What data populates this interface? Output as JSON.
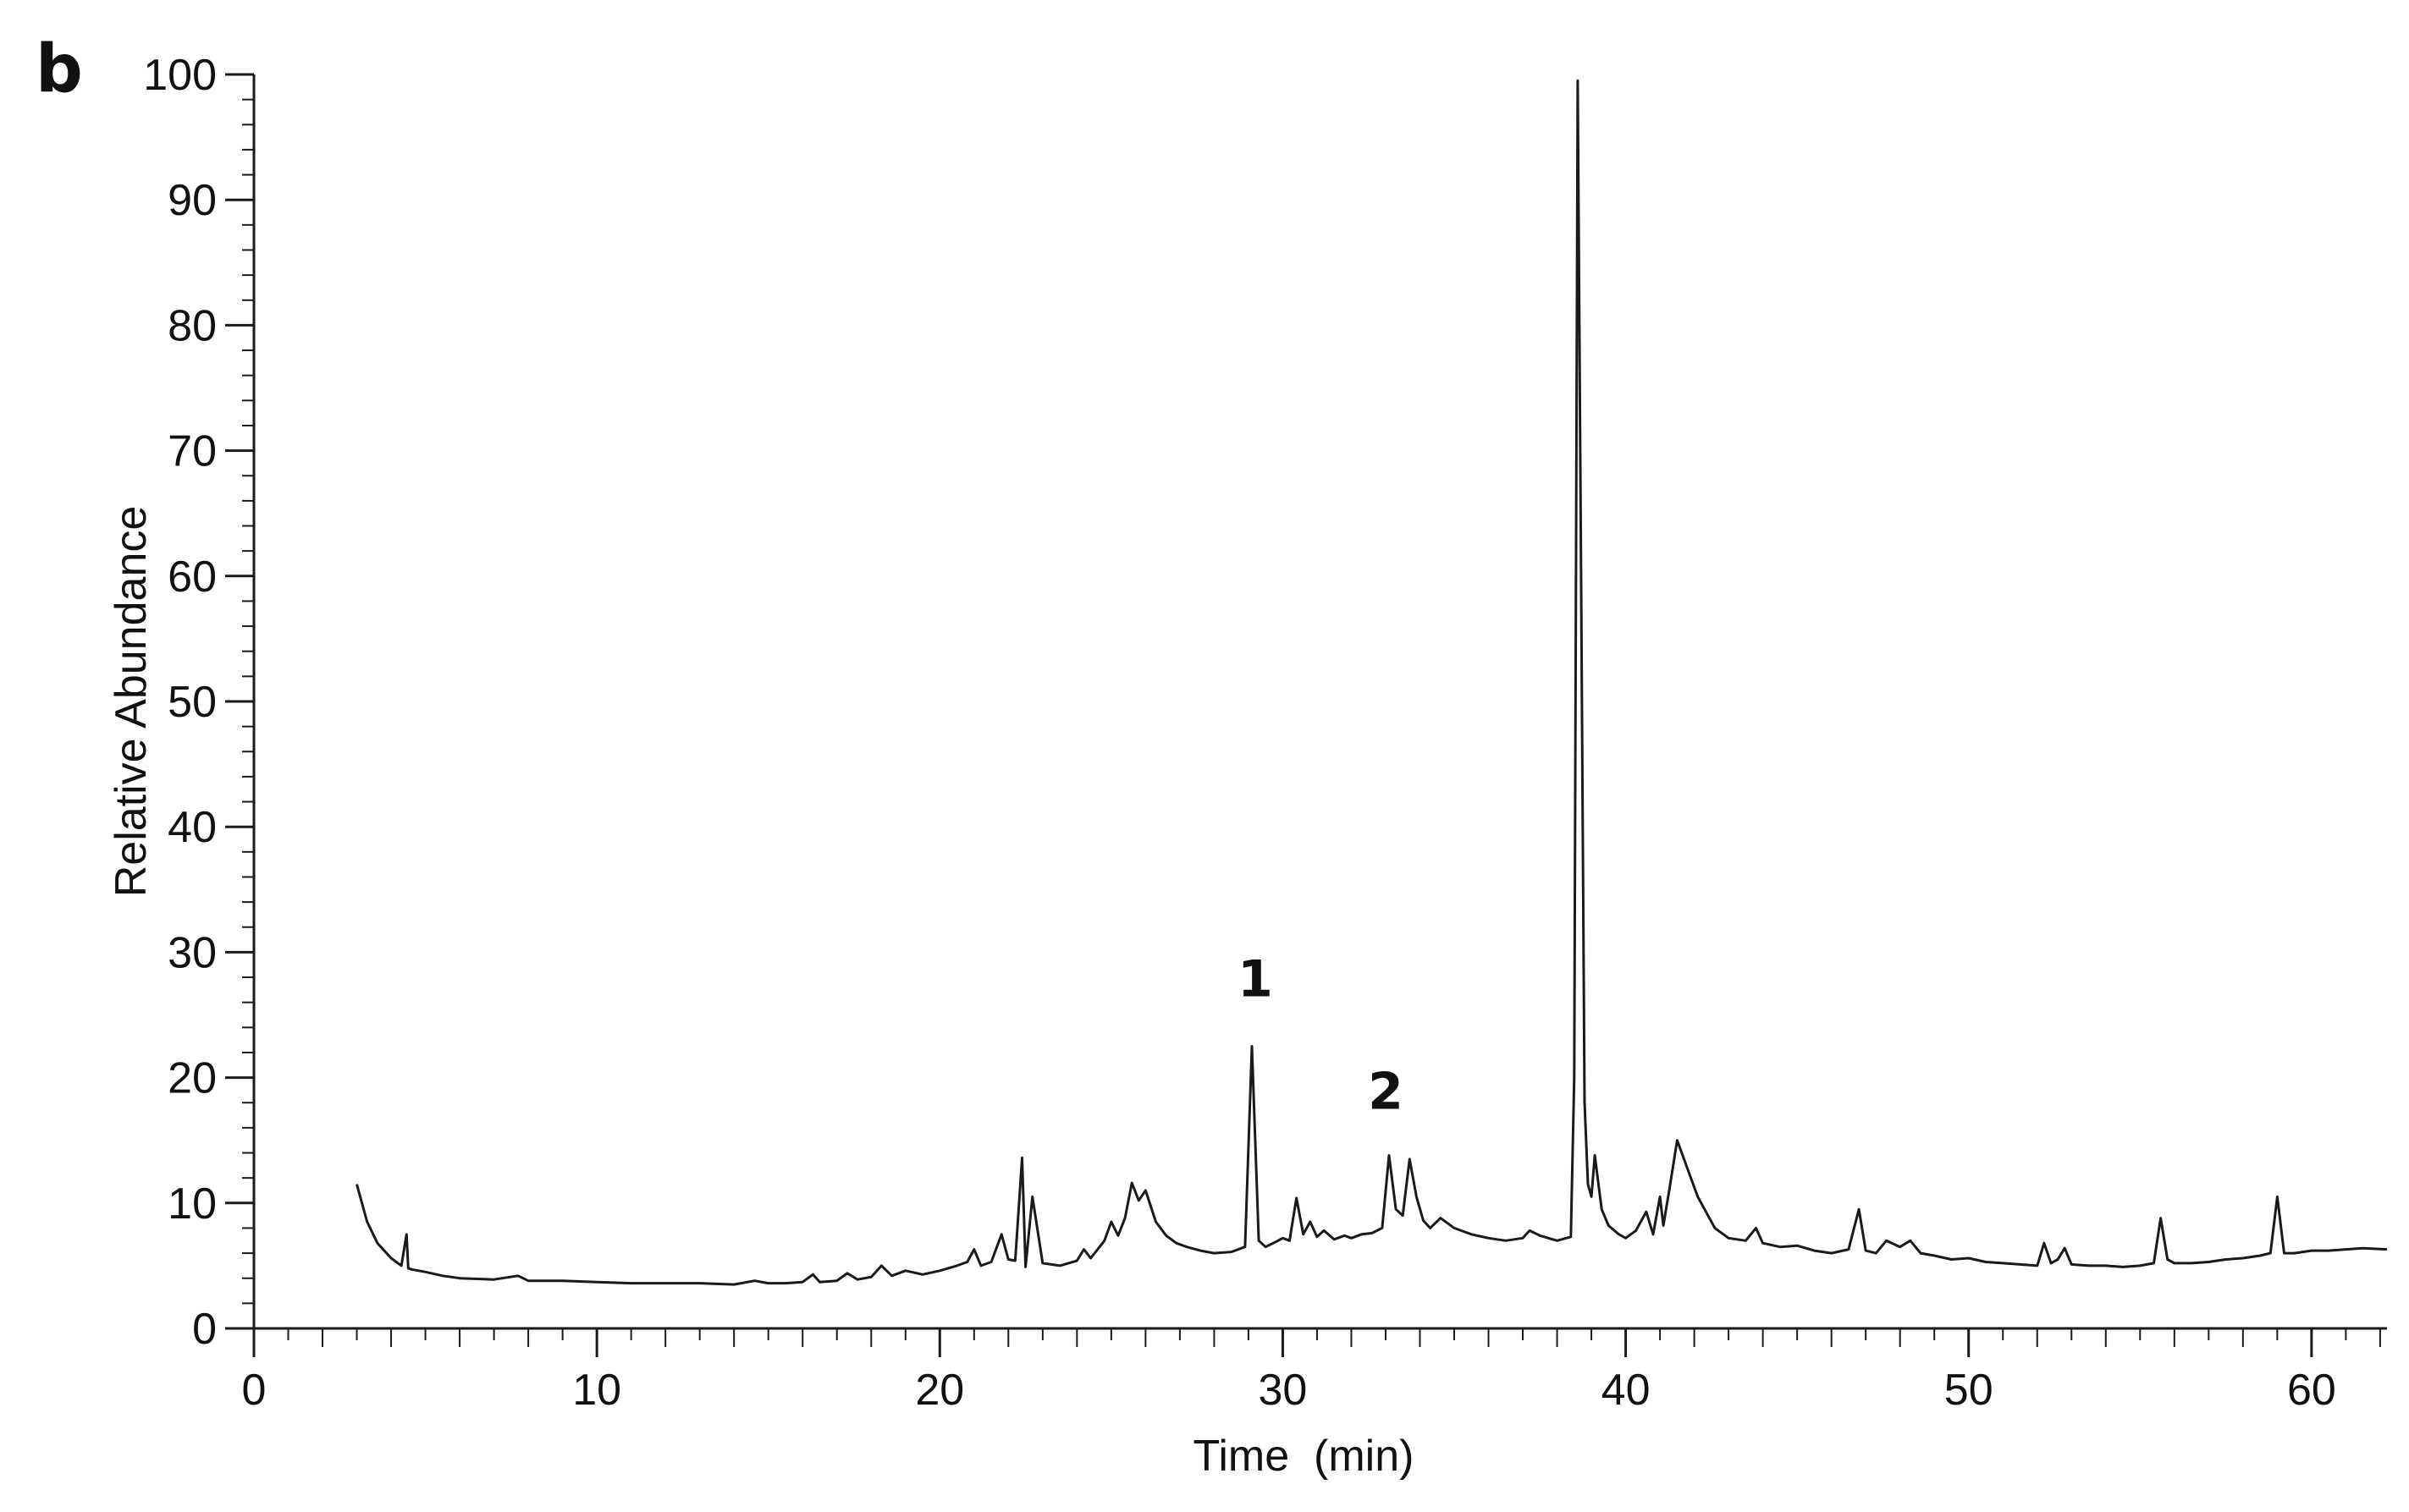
{
  "panel_label": "b",
  "chart_data": {
    "type": "line",
    "title": "",
    "xlabel": "Time  (min)",
    "ylabel": "Relative Abundance",
    "xlim": [
      0,
      62.2
    ],
    "ylim": [
      0,
      100
    ],
    "x_ticks": [
      0,
      10,
      20,
      30,
      40,
      50,
      60
    ],
    "y_ticks": [
      0,
      10,
      20,
      30,
      40,
      50,
      60,
      70,
      80,
      90,
      100
    ],
    "grid": false,
    "legend": "none",
    "line_color": "#1a1a1a",
    "annotations": [
      {
        "text": "1",
        "x": 29.2,
        "y": 26.5
      },
      {
        "text": "2",
        "x": 33.0,
        "y": 17.5
      }
    ],
    "series": [
      {
        "x": [
          3.0,
          3.3,
          3.6,
          4.0,
          4.3,
          4.45,
          4.5,
          4.6,
          5.0,
          5.5,
          6.0,
          7.0,
          7.7,
          8.0,
          9.0,
          10.0,
          11.0,
          12.0,
          13.0,
          14.0,
          14.6,
          15.0,
          15.5,
          16.0,
          16.3,
          16.5,
          17.0,
          17.3,
          17.6,
          18.0,
          18.3,
          18.6,
          19.0,
          19.5,
          20.0,
          20.5,
          20.8,
          21.0,
          21.2,
          21.5,
          21.8,
          22.0,
          22.2,
          22.4,
          22.5,
          22.7,
          23.0,
          23.5,
          24.0,
          24.2,
          24.4,
          24.8,
          25.0,
          25.2,
          25.4,
          25.6,
          25.8,
          26.0,
          26.3,
          26.6,
          26.9,
          27.2,
          27.6,
          28.0,
          28.5,
          28.9,
          29.1,
          29.3,
          29.5,
          29.8,
          30.0,
          30.2,
          30.4,
          30.6,
          30.8,
          31.0,
          31.2,
          31.5,
          31.8,
          32.0,
          32.3,
          32.6,
          32.9,
          33.1,
          33.3,
          33.5,
          33.7,
          33.9,
          34.1,
          34.3,
          34.6,
          35.0,
          35.5,
          36.0,
          36.5,
          37.0,
          37.2,
          37.5,
          38.0,
          38.4,
          38.5,
          38.6,
          38.7,
          38.8,
          38.9,
          39.0,
          39.1,
          39.3,
          39.5,
          39.8,
          40.0,
          40.3,
          40.6,
          40.8,
          41.0,
          41.1,
          41.3,
          41.5,
          41.7,
          41.9,
          42.1,
          42.3,
          42.6,
          43.0,
          43.5,
          43.8,
          44.0,
          44.5,
          45.0,
          45.5,
          46.0,
          46.5,
          46.8,
          47.0,
          47.3,
          47.6,
          48.0,
          48.3,
          48.6,
          49.0,
          49.5,
          50.0,
          50.5,
          51.0,
          51.5,
          52.0,
          52.2,
          52.4,
          52.6,
          52.8,
          53.0,
          53.5,
          54.0,
          54.5,
          55.0,
          55.4,
          55.6,
          55.8,
          56.0,
          56.5,
          57.0,
          57.5,
          58.0,
          58.5,
          58.8,
          59.0,
          59.2,
          59.5,
          60.0,
          60.5,
          61.0,
          61.5,
          62.2
        ],
        "y": [
          11.5,
          8.5,
          6.8,
          5.6,
          5.0,
          7.5,
          4.8,
          4.7,
          4.5,
          4.2,
          4.0,
          3.9,
          4.2,
          3.8,
          3.8,
          3.7,
          3.6,
          3.6,
          3.6,
          3.5,
          3.8,
          3.6,
          3.6,
          3.7,
          4.3,
          3.7,
          3.8,
          4.4,
          3.9,
          4.1,
          5.0,
          4.2,
          4.6,
          4.3,
          4.6,
          5.0,
          5.3,
          6.3,
          5.0,
          5.3,
          7.5,
          5.5,
          5.4,
          13.6,
          4.9,
          10.5,
          5.2,
          5.0,
          5.4,
          6.3,
          5.6,
          7.0,
          8.5,
          7.4,
          8.8,
          11.6,
          10.2,
          11.0,
          8.5,
          7.4,
          6.8,
          6.5,
          6.2,
          6.0,
          6.1,
          6.5,
          22.5,
          7.0,
          6.5,
          6.9,
          7.2,
          7.0,
          10.4,
          7.5,
          8.5,
          7.3,
          7.8,
          7.1,
          7.4,
          7.2,
          7.5,
          7.6,
          8.0,
          13.8,
          9.5,
          9.0,
          13.5,
          10.5,
          8.6,
          8.0,
          8.8,
          8.0,
          7.5,
          7.2,
          7.0,
          7.2,
          7.8,
          7.4,
          7.0,
          7.3,
          20.0,
          99.5,
          60.0,
          18.0,
          11.5,
          10.5,
          13.8,
          9.5,
          8.2,
          7.5,
          7.2,
          7.8,
          9.3,
          7.5,
          10.5,
          8.2,
          11.5,
          15.0,
          13.5,
          12.0,
          10.5,
          9.5,
          8.0,
          7.2,
          7.0,
          8.0,
          6.8,
          6.5,
          6.6,
          6.2,
          6.0,
          6.3,
          9.5,
          6.2,
          6.0,
          7.0,
          6.5,
          7.0,
          6.0,
          5.8,
          5.5,
          5.6,
          5.3,
          5.2,
          5.1,
          5.0,
          6.8,
          5.2,
          5.5,
          6.4,
          5.1,
          5.0,
          5.0,
          4.9,
          5.0,
          5.2,
          8.8,
          5.5,
          5.2,
          5.2,
          5.3,
          5.5,
          5.6,
          5.8,
          6.0,
          10.5,
          6.0,
          6.0,
          6.2,
          6.2,
          6.3,
          6.4,
          6.3
        ]
      }
    ]
  }
}
